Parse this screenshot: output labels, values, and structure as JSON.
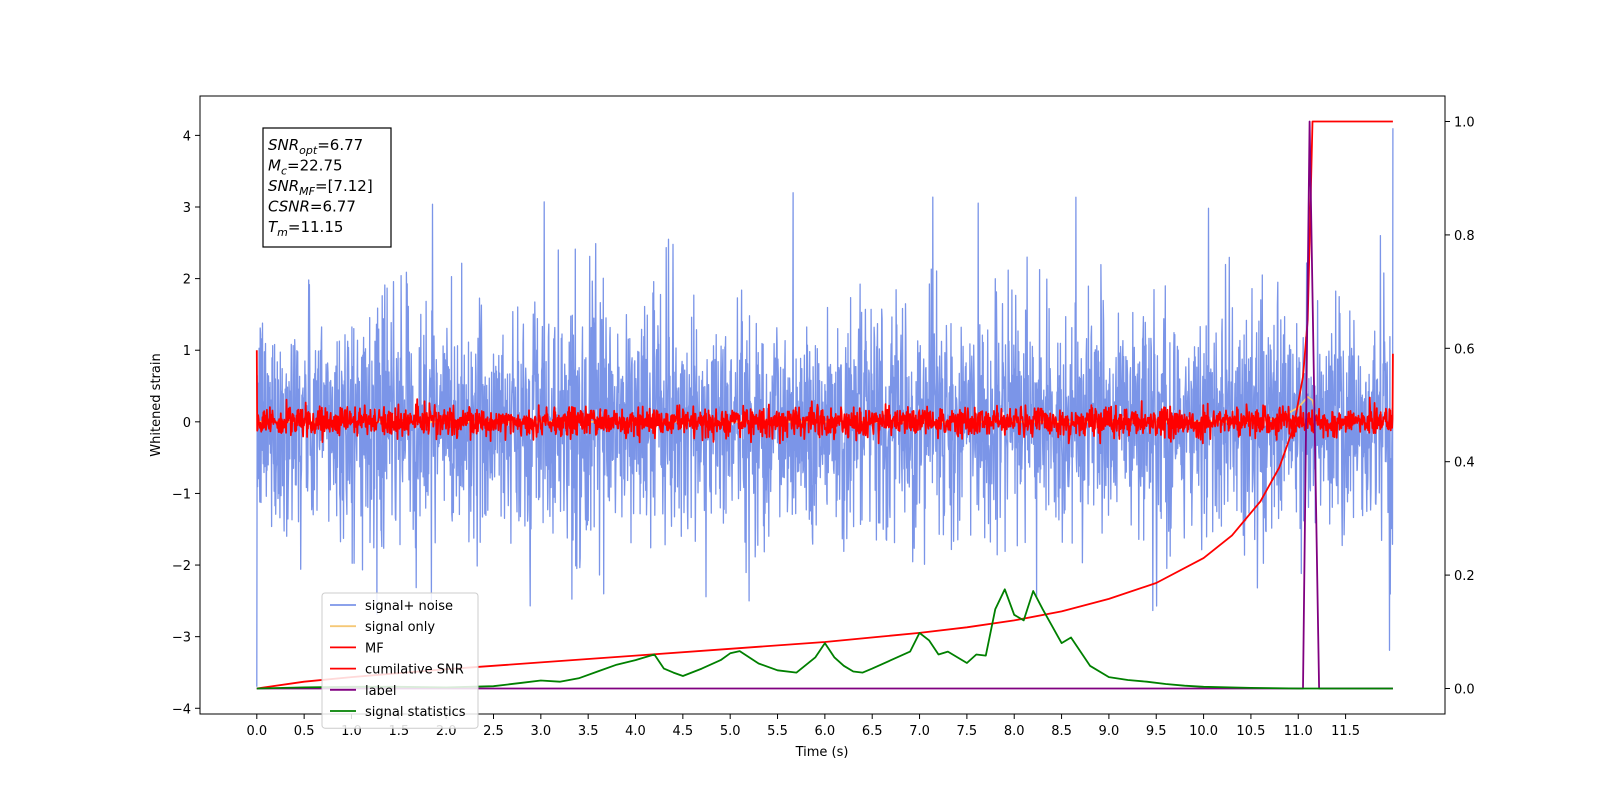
{
  "chart_data": {
    "type": "line",
    "title": "",
    "xlabel": "Time (s)",
    "ylabel": "Whitened strain",
    "y2label": "",
    "xlim": [
      -0.6,
      12.55
    ],
    "ylim": [
      -4.08,
      4.55
    ],
    "y2lim": [
      -0.045,
      1.045
    ],
    "x_ticks": [
      "0.0",
      "0.5",
      "1.0",
      "1.5",
      "2.0",
      "2.5",
      "3.0",
      "3.5",
      "4.0",
      "4.5",
      "5.0",
      "5.5",
      "6.0",
      "6.5",
      "7.0",
      "7.5",
      "8.0",
      "8.5",
      "9.0",
      "9.5",
      "10.0",
      "10.5",
      "11.0",
      "11.5"
    ],
    "y_ticks": [
      "4",
      "3",
      "2",
      "1",
      "0",
      "−1",
      "−2",
      "−3",
      "−4"
    ],
    "y2_ticks": [
      "1.0",
      "0.8",
      "0.6",
      "0.4",
      "0.2",
      "0.0"
    ],
    "grid": false,
    "legend_position": "lower-left",
    "annotation": {
      "lines": [
        {
          "var": "SNR",
          "sub": "opt",
          "value": "=6.77"
        },
        {
          "var": "M",
          "sub": "c",
          "value": "=22.75"
        },
        {
          "var": "SNR",
          "sub": "MF",
          "value": "=[7.12]"
        },
        {
          "var": "CSNR",
          "sub": "",
          "value": "=6.77"
        },
        {
          "var": "T",
          "sub": "m",
          "value": "=11.15"
        }
      ]
    },
    "series": [
      {
        "name": "signal+ noise",
        "color": "#7b95e8",
        "axis": "left",
        "kind": "noise",
        "x_range": [
          0,
          12
        ],
        "amplitude_sd": 0.8,
        "range_observed": [
          -3.7,
          4.2
        ]
      },
      {
        "name": "signal only",
        "color": "#f5c877",
        "axis": "left",
        "kind": "chirp",
        "x": [
          0,
          10.5,
          10.8,
          11.0,
          11.1,
          11.15,
          11.2
        ],
        "y": [
          0,
          0,
          0.05,
          0.2,
          0.35,
          0.3,
          0
        ]
      },
      {
        "name": "MF",
        "color": "#ff0000",
        "axis": "left",
        "kind": "noise",
        "x_range": [
          0,
          12
        ],
        "amplitude_sd": 0.1,
        "range_observed": [
          -0.3,
          1.0
        ]
      },
      {
        "name": "cumilative SNR",
        "color": "#ff0000",
        "axis": "right",
        "x": [
          0.0,
          0.5,
          1.0,
          2.0,
          3.0,
          4.0,
          5.0,
          6.0,
          7.0,
          7.5,
          8.0,
          8.5,
          9.0,
          9.5,
          10.0,
          10.3,
          10.6,
          10.8,
          10.95,
          11.05,
          11.1,
          11.15,
          11.2,
          11.5,
          11.8,
          12.0
        ],
        "y": [
          0.0,
          0.012,
          0.02,
          0.034,
          0.046,
          0.058,
          0.07,
          0.082,
          0.098,
          0.108,
          0.12,
          0.136,
          0.158,
          0.186,
          0.23,
          0.27,
          0.33,
          0.39,
          0.46,
          0.55,
          0.65,
          1.0,
          1.0,
          1.0,
          1.0,
          1.0
        ]
      },
      {
        "name": "label",
        "color": "#800080",
        "axis": "right",
        "x": [
          0.0,
          11.0,
          11.05,
          11.12,
          11.22,
          11.28,
          12.0
        ],
        "y": [
          0.0,
          0.0,
          0.0,
          1.0,
          0.0,
          0.0,
          0.0
        ]
      },
      {
        "name": "signal statistics",
        "color": "#008000",
        "axis": "right",
        "x": [
          0.0,
          0.5,
          1.0,
          1.5,
          2.0,
          2.5,
          2.8,
          3.0,
          3.2,
          3.4,
          3.6,
          3.8,
          4.0,
          4.1,
          4.2,
          4.3,
          4.4,
          4.5,
          4.7,
          4.9,
          5.0,
          5.1,
          5.3,
          5.5,
          5.7,
          5.9,
          6.0,
          6.1,
          6.2,
          6.3,
          6.4,
          6.5,
          6.7,
          6.9,
          7.0,
          7.1,
          7.2,
          7.3,
          7.5,
          7.6,
          7.7,
          7.8,
          7.9,
          8.0,
          8.1,
          8.2,
          8.3,
          8.4,
          8.5,
          8.6,
          8.7,
          8.8,
          9.0,
          9.2,
          9.4,
          9.6,
          9.8,
          10.0,
          10.5,
          11.0,
          11.5,
          12.0
        ],
        "y": [
          0.0,
          0.002,
          0.003,
          0.003,
          0.002,
          0.004,
          0.01,
          0.014,
          0.012,
          0.018,
          0.03,
          0.042,
          0.05,
          0.055,
          0.06,
          0.035,
          0.028,
          0.022,
          0.035,
          0.05,
          0.062,
          0.066,
          0.044,
          0.032,
          0.028,
          0.055,
          0.08,
          0.055,
          0.04,
          0.03,
          0.028,
          0.035,
          0.05,
          0.065,
          0.098,
          0.085,
          0.06,
          0.065,
          0.045,
          0.06,
          0.058,
          0.14,
          0.175,
          0.13,
          0.12,
          0.172,
          0.14,
          0.11,
          0.08,
          0.09,
          0.065,
          0.04,
          0.02,
          0.015,
          0.012,
          0.008,
          0.005,
          0.003,
          0.001,
          0.0,
          0.0,
          0.0
        ]
      }
    ]
  }
}
